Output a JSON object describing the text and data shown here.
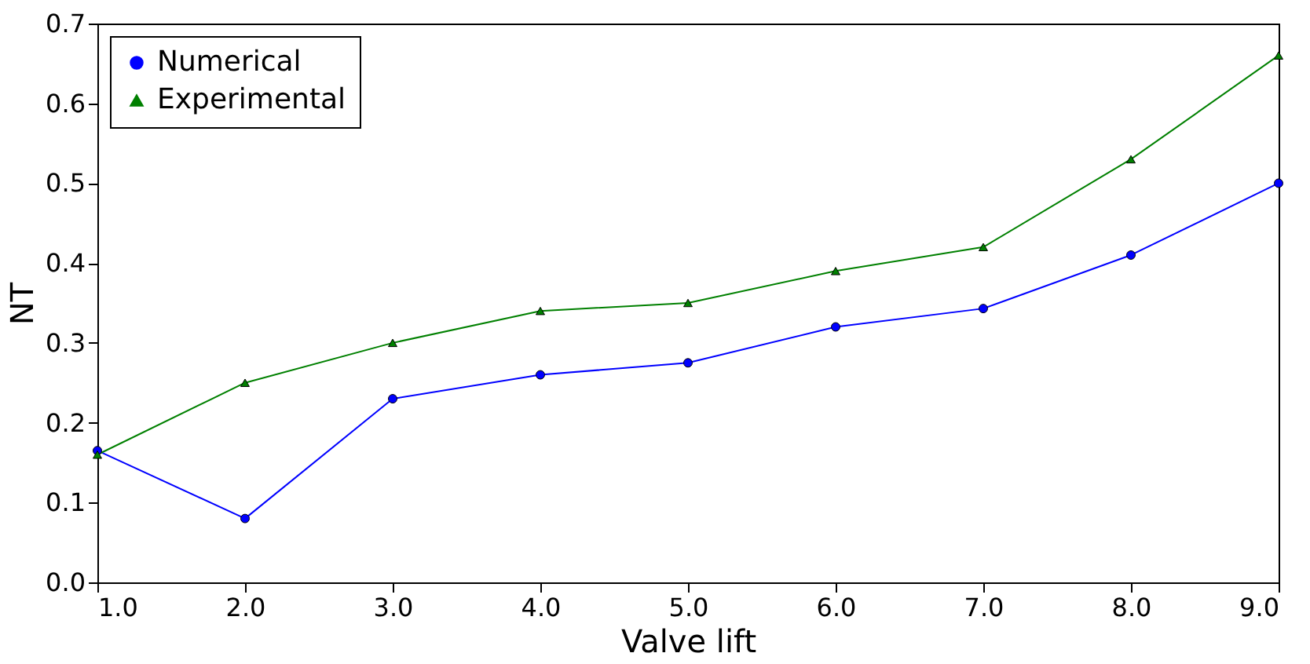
{
  "chart_data": {
    "type": "line",
    "xlabel": "Valve lift",
    "ylabel": "NT",
    "x": [
      1,
      2,
      3,
      4,
      5,
      6,
      7,
      8,
      9
    ],
    "series": [
      {
        "name": "Numerical",
        "color": "#0000ff",
        "marker": "circle",
        "values": [
          0.165,
          0.08,
          0.23,
          0.26,
          0.275,
          0.32,
          0.343,
          0.41,
          0.5
        ]
      },
      {
        "name": "Experimental",
        "color": "#008000",
        "marker": "triangle",
        "values": [
          0.16,
          0.25,
          0.3,
          0.34,
          0.35,
          0.39,
          0.42,
          0.53,
          0.66
        ]
      }
    ],
    "xlim": [
      1,
      9
    ],
    "ylim": [
      0,
      0.7
    ],
    "xticks": [
      {
        "value": 1,
        "label": "1.0"
      },
      {
        "value": 2,
        "label": "2.0"
      },
      {
        "value": 3,
        "label": "3.0"
      },
      {
        "value": 4,
        "label": "4.0"
      },
      {
        "value": 5,
        "label": "5.0"
      },
      {
        "value": 6,
        "label": "6.0"
      },
      {
        "value": 7,
        "label": "7.0"
      },
      {
        "value": 8,
        "label": "8.0"
      },
      {
        "value": 9,
        "label": "9.0"
      }
    ],
    "yticks": [
      {
        "value": 0,
        "label": "0.0"
      },
      0.1,
      0.2,
      0.3,
      0.4,
      0.5,
      0.6,
      0.7
    ],
    "legend": "top left",
    "line_style": "solid"
  }
}
